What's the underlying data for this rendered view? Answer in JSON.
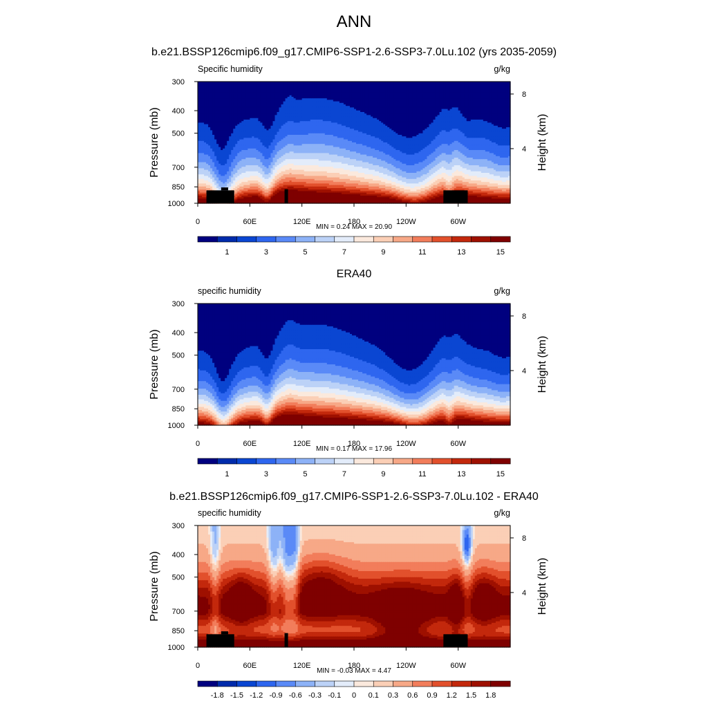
{
  "figure": {
    "title": "ANN"
  },
  "colors": {
    "abs_scale": [
      "#00007f",
      "#002bab",
      "#0a46d2",
      "#2e66ef",
      "#5a8af7",
      "#8db2f7",
      "#bcd2f7",
      "#e3ecfa",
      "#fbe9dd",
      "#fbcfb6",
      "#f7a887",
      "#f27d5b",
      "#e2502c",
      "#c3280c",
      "#9e1000",
      "#7f0000"
    ],
    "diff_scale": [
      "#00007f",
      "#002bab",
      "#0a46d2",
      "#2e66ef",
      "#5a8af7",
      "#8db2f7",
      "#bcd2f7",
      "#e3ecfa",
      "#fbe9dd",
      "#fbcfb6",
      "#f7a887",
      "#f27d5b",
      "#e2502c",
      "#c3280c",
      "#9e1000",
      "#7f0000"
    ],
    "terrain": "#000000"
  },
  "chart_data": [
    {
      "type": "heatmap",
      "title": "b.e21.BSSP126cmip6.f09_g17.CMIP6-SSP1-2.6-SSP3-7.0Lu.102 (yrs 2035-2059)",
      "left_label": "Specific humidity",
      "right_label": "g/kg",
      "ylabel": "Pressure (mb)",
      "ylabel_right": "Height (km)",
      "x_ticks": [
        "0",
        "60E",
        "120E",
        "180",
        "120W",
        "60W"
      ],
      "y_ticks": [
        "300",
        "400",
        "500",
        "700",
        "850",
        "1000"
      ],
      "y_ticks_right": [
        "8",
        "4"
      ],
      "xlim": [
        0,
        360
      ],
      "ylim": [
        1000,
        300
      ],
      "stats": "MIN =   0.24  MAX =  20.90",
      "colorbar_labels": [
        "1",
        "3",
        "5",
        "7",
        "9",
        "11",
        "13",
        "15"
      ],
      "has_terrain": true,
      "field": "model",
      "min": 0.24,
      "max": 20.9
    },
    {
      "type": "heatmap",
      "title": "ERA40",
      "left_label": "specific humidity",
      "right_label": "g/kg",
      "ylabel": "Pressure (mb)",
      "ylabel_right": "Height (km)",
      "x_ticks": [
        "0",
        "60E",
        "120E",
        "180",
        "120W",
        "60W"
      ],
      "y_ticks": [
        "300",
        "400",
        "500",
        "700",
        "850",
        "1000"
      ],
      "y_ticks_right": [
        "8",
        "4"
      ],
      "xlim": [
        0,
        360
      ],
      "ylim": [
        1000,
        300
      ],
      "stats": "MIN =   0.17  MAX =  17.96",
      "colorbar_labels": [
        "1",
        "3",
        "5",
        "7",
        "9",
        "11",
        "13",
        "15"
      ],
      "has_terrain": false,
      "field": "obs",
      "min": 0.17,
      "max": 17.96
    },
    {
      "type": "heatmap",
      "title": "b.e21.BSSP126cmip6.f09_g17.CMIP6-SSP1-2.6-SSP3-7.0Lu.102 - ERA40",
      "left_label": "specific humidity",
      "right_label": "g/kg",
      "ylabel": "Pressure (mb)",
      "ylabel_right": "Height (km)",
      "x_ticks": [
        "0",
        "60E",
        "120E",
        "180",
        "120W",
        "60W"
      ],
      "y_ticks": [
        "300",
        "400",
        "500",
        "700",
        "850",
        "1000"
      ],
      "y_ticks_right": [
        "8",
        "4"
      ],
      "xlim": [
        0,
        360
      ],
      "ylim": [
        1000,
        300
      ],
      "stats": "MIN =  -0.03  MAX =   4.47",
      "colorbar_labels": [
        "-1.8",
        "-1.5",
        "-1.2",
        "-0.9",
        "-0.6",
        "-0.3",
        "-0.1",
        "0",
        "0.1",
        "0.3",
        "0.6",
        "0.9",
        "1.2",
        "1.5",
        "1.8"
      ],
      "diff_levels": [
        -1.8,
        -1.5,
        -1.2,
        -0.9,
        -0.6,
        -0.3,
        -0.1,
        0,
        0.1,
        0.3,
        0.6,
        0.9,
        1.2,
        1.5,
        1.8
      ],
      "has_terrain": true,
      "field": "diff",
      "min": -0.03,
      "max": 4.47
    }
  ]
}
